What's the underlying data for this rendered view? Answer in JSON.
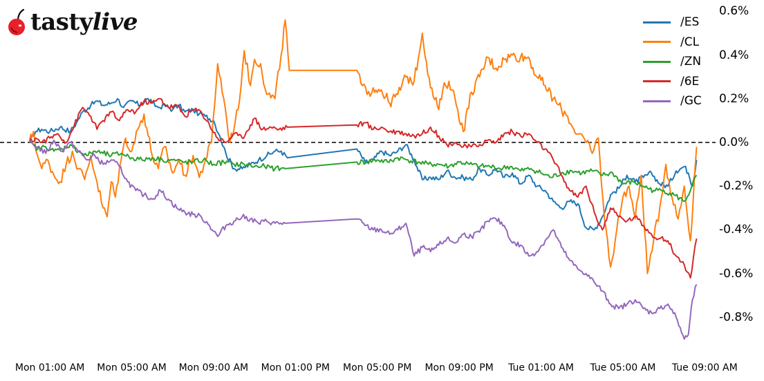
{
  "brand": {
    "logo_text_bold": "tasty",
    "logo_text_italic": "live",
    "logo_icon": "cherry-icon",
    "cherry_color": "#e8202a"
  },
  "chart_data": {
    "type": "line",
    "title": "",
    "xlabel": "",
    "ylabel": "",
    "x_ticks": [
      "Mon 01:00 AM",
      "Mon 05:00 AM",
      "Mon 09:00 AM",
      "Mon 01:00 PM",
      "Mon 05:00 PM",
      "Mon 09:00 PM",
      "Tue 01:00 AM",
      "Tue 05:00 AM",
      "Tue 09:00 AM"
    ],
    "y_ticks": [
      "0.6%",
      "0.4%",
      "0.2%",
      "0.0%",
      "-0.2%",
      "-0.4%",
      "-0.6%",
      "-0.8%"
    ],
    "y_tick_values": [
      0.6,
      0.4,
      0.2,
      0.0,
      -0.2,
      -0.4,
      -0.6,
      -0.8
    ],
    "ylim": [
      -0.92,
      0.63
    ],
    "x_unit": "hours since Mon 00:00",
    "xlim": [
      -0.9,
      33.6
    ],
    "reference_line": {
      "y": 0.0,
      "style": "dashed",
      "color": "#000000"
    },
    "grid": false,
    "legend_position": "upper right",
    "series": [
      {
        "name": "/ES",
        "color": "#1f77b4",
        "x": [
          0.0,
          0.3,
          0.6,
          1.0,
          1.5,
          2.0,
          2.3,
          2.6,
          3.0,
          3.3,
          3.6,
          4.0,
          4.3,
          4.6,
          5.0,
          5.4,
          5.8,
          6.0,
          6.3,
          6.6,
          7.0,
          7.3,
          7.6,
          8.0,
          8.3,
          8.6,
          9.0,
          9.3,
          9.6,
          10.0,
          10.4,
          10.8,
          11.2,
          11.6,
          12.0,
          12.3,
          12.6,
          16.0,
          16.4,
          16.8,
          17.2,
          17.6,
          18.0,
          18.4,
          18.8,
          19.2,
          19.6,
          20.0,
          20.4,
          20.8,
          21.2,
          21.6,
          22.0,
          22.4,
          22.8,
          23.2,
          23.6,
          24.0,
          24.4,
          24.8,
          25.2,
          25.6,
          26.0,
          26.4,
          26.8,
          27.2,
          27.6,
          28.0,
          28.4,
          28.8,
          29.2,
          29.6,
          30.0,
          30.4,
          30.8,
          31.2,
          31.6,
          32.0,
          32.2,
          32.4,
          32.6
        ],
        "values": [
          0.0,
          0.05,
          0.06,
          0.05,
          0.07,
          0.05,
          0.09,
          0.14,
          0.17,
          0.19,
          0.17,
          0.18,
          0.2,
          0.16,
          0.19,
          0.17,
          0.2,
          0.18,
          0.16,
          0.17,
          0.15,
          0.17,
          0.14,
          0.15,
          0.13,
          0.12,
          0.1,
          0.03,
          -0.05,
          -0.12,
          -0.12,
          -0.1,
          -0.08,
          -0.06,
          -0.04,
          -0.04,
          -0.07,
          -0.03,
          -0.09,
          -0.08,
          -0.04,
          -0.06,
          -0.04,
          -0.01,
          -0.08,
          -0.17,
          -0.16,
          -0.17,
          -0.13,
          -0.16,
          -0.16,
          -0.17,
          -0.12,
          -0.15,
          -0.12,
          -0.16,
          -0.14,
          -0.19,
          -0.15,
          -0.2,
          -0.22,
          -0.27,
          -0.3,
          -0.27,
          -0.28,
          -0.39,
          -0.4,
          -0.34,
          -0.24,
          -0.21,
          -0.15,
          -0.18,
          -0.16,
          -0.14,
          -0.19,
          -0.2,
          -0.13,
          -0.11,
          -0.14,
          -0.2,
          -0.08
        ]
      },
      {
        "name": "/CL",
        "color": "#ff7f0e",
        "x": [
          0.0,
          0.2,
          0.4,
          0.6,
          0.9,
          1.2,
          1.5,
          1.8,
          2.1,
          2.4,
          2.7,
          3.0,
          3.3,
          3.6,
          3.8,
          4.0,
          4.2,
          4.4,
          4.7,
          5.0,
          5.3,
          5.6,
          6.0,
          6.3,
          6.6,
          7.0,
          7.3,
          7.6,
          8.0,
          8.3,
          8.6,
          8.9,
          9.2,
          9.5,
          9.8,
          10.2,
          10.5,
          10.8,
          11.0,
          11.3,
          11.6,
          12.0,
          12.3,
          12.5,
          12.7,
          16.0,
          16.2,
          16.5,
          16.8,
          17.2,
          17.6,
          18.0,
          18.4,
          18.8,
          19.2,
          19.6,
          20.0,
          20.2,
          20.5,
          20.8,
          21.2,
          21.6,
          22.0,
          22.4,
          22.8,
          23.2,
          23.6,
          24.0,
          24.4,
          24.8,
          25.2,
          25.6,
          26.0,
          26.3,
          26.6,
          26.9,
          27.2,
          27.5,
          27.8,
          28.1,
          28.4,
          28.7,
          29.0,
          29.3,
          29.6,
          29.9,
          30.2,
          30.5,
          30.8,
          31.1,
          31.4,
          31.7,
          32.0,
          32.3,
          32.6
        ],
        "values": [
          0.0,
          0.05,
          -0.06,
          -0.12,
          -0.08,
          -0.15,
          -0.18,
          -0.1,
          -0.04,
          -0.12,
          -0.17,
          -0.06,
          -0.18,
          -0.3,
          -0.34,
          -0.18,
          -0.25,
          -0.12,
          0.02,
          -0.04,
          0.06,
          0.13,
          -0.06,
          -0.12,
          -0.02,
          -0.14,
          -0.08,
          -0.15,
          -0.06,
          -0.16,
          -0.08,
          0.0,
          0.36,
          0.2,
          0.0,
          0.15,
          0.42,
          0.26,
          0.38,
          0.36,
          0.22,
          0.2,
          0.4,
          0.56,
          0.33,
          0.33,
          0.27,
          0.22,
          0.25,
          0.24,
          0.18,
          0.22,
          0.3,
          0.28,
          0.5,
          0.25,
          0.15,
          0.24,
          0.28,
          0.2,
          0.05,
          0.23,
          0.3,
          0.39,
          0.34,
          0.38,
          0.4,
          0.39,
          0.39,
          0.3,
          0.26,
          0.2,
          0.15,
          0.12,
          0.06,
          0.04,
          0.0,
          -0.05,
          0.02,
          -0.35,
          -0.57,
          -0.4,
          -0.25,
          -0.2,
          -0.35,
          -0.15,
          -0.6,
          -0.45,
          -0.3,
          -0.1,
          -0.25,
          -0.35,
          -0.2,
          -0.45,
          -0.02
        ]
      },
      {
        "name": "/ZN",
        "color": "#2ca02c",
        "x": [
          0.0,
          0.4,
          0.8,
          1.2,
          1.6,
          2.0,
          2.4,
          2.8,
          3.2,
          3.6,
          4.0,
          4.5,
          5.0,
          5.5,
          6.0,
          6.5,
          7.0,
          7.5,
          8.0,
          8.5,
          9.0,
          9.5,
          10.0,
          10.5,
          11.0,
          11.5,
          12.0,
          12.5,
          16.0,
          16.5,
          17.0,
          17.5,
          18.0,
          18.5,
          19.0,
          19.5,
          20.0,
          20.5,
          21.0,
          21.5,
          22.0,
          22.5,
          23.0,
          23.5,
          24.0,
          24.5,
          25.0,
          25.5,
          26.0,
          26.5,
          27.0,
          27.5,
          28.0,
          28.5,
          29.0,
          29.5,
          30.0,
          30.5,
          31.0,
          31.5,
          32.0,
          32.3,
          32.6
        ],
        "values": [
          0.0,
          -0.03,
          -0.02,
          -0.04,
          -0.03,
          -0.01,
          -0.04,
          -0.06,
          -0.04,
          -0.05,
          -0.06,
          -0.05,
          -0.07,
          -0.08,
          -0.07,
          -0.08,
          -0.08,
          -0.09,
          -0.09,
          -0.08,
          -0.1,
          -0.09,
          -0.1,
          -0.1,
          -0.11,
          -0.11,
          -0.12,
          -0.12,
          -0.09,
          -0.09,
          -0.08,
          -0.09,
          -0.07,
          -0.08,
          -0.09,
          -0.1,
          -0.1,
          -0.11,
          -0.09,
          -0.1,
          -0.11,
          -0.11,
          -0.12,
          -0.11,
          -0.13,
          -0.12,
          -0.14,
          -0.16,
          -0.14,
          -0.13,
          -0.14,
          -0.13,
          -0.15,
          -0.14,
          -0.19,
          -0.18,
          -0.2,
          -0.22,
          -0.22,
          -0.24,
          -0.27,
          -0.22,
          -0.15
        ]
      },
      {
        "name": "/6E",
        "color": "#d62728",
        "x": [
          0.0,
          0.3,
          0.6,
          1.0,
          1.4,
          1.8,
          2.2,
          2.6,
          3.0,
          3.3,
          3.6,
          4.0,
          4.4,
          4.8,
          5.2,
          5.6,
          6.0,
          6.4,
          6.8,
          7.2,
          7.6,
          8.0,
          8.4,
          8.8,
          9.2,
          9.6,
          10.0,
          10.4,
          10.8,
          11.0,
          11.4,
          11.8,
          12.2,
          12.6,
          16.0,
          16.4,
          16.8,
          17.2,
          17.6,
          18.0,
          18.4,
          18.8,
          19.2,
          19.6,
          20.0,
          20.4,
          20.8,
          21.2,
          21.6,
          22.0,
          22.4,
          22.8,
          23.2,
          23.6,
          24.0,
          24.4,
          24.8,
          25.2,
          25.6,
          26.0,
          26.4,
          26.8,
          27.2,
          27.6,
          28.0,
          28.4,
          28.8,
          29.2,
          29.6,
          30.0,
          30.4,
          30.8,
          31.2,
          31.6,
          32.0,
          32.3,
          32.6
        ],
        "values": [
          0.0,
          0.02,
          0.0,
          0.02,
          0.04,
          0.0,
          0.08,
          0.16,
          0.12,
          0.06,
          0.1,
          0.14,
          0.1,
          0.15,
          0.14,
          0.19,
          0.18,
          0.2,
          0.16,
          0.17,
          0.12,
          0.15,
          0.14,
          0.08,
          0.02,
          0.0,
          0.04,
          0.02,
          0.08,
          0.11,
          0.06,
          0.07,
          0.06,
          0.07,
          0.08,
          0.09,
          0.06,
          0.07,
          0.05,
          0.05,
          0.04,
          0.03,
          0.04,
          0.07,
          0.03,
          -0.01,
          0.0,
          -0.02,
          -0.02,
          -0.01,
          0.01,
          0.0,
          0.04,
          0.05,
          0.03,
          0.04,
          0.0,
          -0.03,
          -0.08,
          -0.15,
          -0.22,
          -0.25,
          -0.2,
          -0.32,
          -0.4,
          -0.3,
          -0.34,
          -0.36,
          -0.34,
          -0.38,
          -0.42,
          -0.44,
          -0.45,
          -0.52,
          -0.56,
          -0.62,
          -0.44
        ]
      },
      {
        "name": "/GC",
        "color": "#9467bd",
        "x": [
          0.0,
          0.4,
          0.8,
          1.2,
          1.6,
          2.0,
          2.4,
          2.8,
          3.2,
          3.6,
          4.0,
          4.4,
          4.8,
          5.2,
          5.6,
          6.0,
          6.4,
          6.8,
          7.2,
          7.6,
          8.0,
          8.4,
          8.8,
          9.2,
          9.6,
          10.0,
          10.4,
          10.8,
          11.2,
          11.6,
          12.0,
          12.5,
          16.0,
          16.4,
          16.8,
          17.2,
          17.6,
          18.0,
          18.4,
          18.8,
          19.2,
          19.6,
          20.0,
          20.4,
          20.8,
          21.2,
          21.6,
          22.0,
          22.4,
          22.8,
          23.2,
          23.6,
          24.0,
          24.4,
          24.8,
          25.2,
          25.6,
          26.0,
          26.4,
          26.8,
          27.2,
          27.6,
          28.0,
          28.4,
          28.8,
          29.2,
          29.6,
          30.0,
          30.4,
          30.8,
          31.2,
          31.6,
          32.0,
          32.2,
          32.4,
          32.6
        ],
        "values": [
          0.0,
          -0.02,
          -0.05,
          0.01,
          -0.04,
          0.0,
          -0.04,
          -0.08,
          -0.06,
          -0.1,
          -0.08,
          -0.11,
          -0.18,
          -0.22,
          -0.24,
          -0.26,
          -0.22,
          -0.26,
          -0.3,
          -0.32,
          -0.33,
          -0.34,
          -0.38,
          -0.43,
          -0.38,
          -0.36,
          -0.34,
          -0.35,
          -0.37,
          -0.36,
          -0.37,
          -0.37,
          -0.35,
          -0.38,
          -0.4,
          -0.4,
          -0.42,
          -0.4,
          -0.37,
          -0.52,
          -0.48,
          -0.5,
          -0.47,
          -0.44,
          -0.46,
          -0.42,
          -0.43,
          -0.41,
          -0.36,
          -0.35,
          -0.38,
          -0.46,
          -0.47,
          -0.52,
          -0.5,
          -0.45,
          -0.4,
          -0.48,
          -0.54,
          -0.58,
          -0.6,
          -0.64,
          -0.68,
          -0.74,
          -0.76,
          -0.74,
          -0.72,
          -0.76,
          -0.78,
          -0.76,
          -0.74,
          -0.8,
          -0.9,
          -0.88,
          -0.72,
          -0.65
        ]
      }
    ]
  },
  "legend": [
    {
      "label": "/ES",
      "color": "#1f77b4"
    },
    {
      "label": "/CL",
      "color": "#ff7f0e"
    },
    {
      "label": "/ZN",
      "color": "#2ca02c"
    },
    {
      "label": "/6E",
      "color": "#d62728"
    },
    {
      "label": "/GC",
      "color": "#9467bd"
    }
  ]
}
